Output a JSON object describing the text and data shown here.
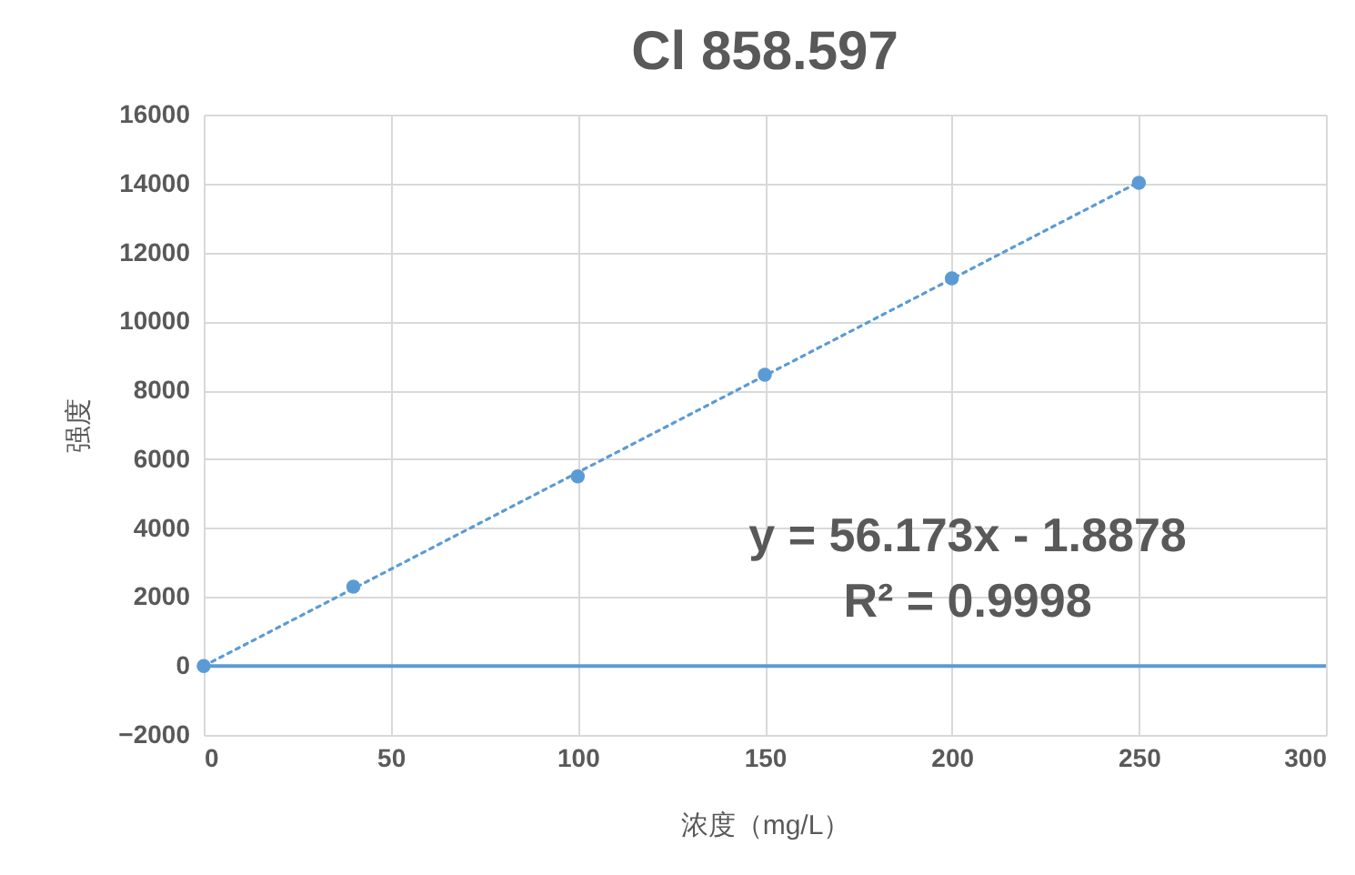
{
  "chart_data": {
    "type": "scatter",
    "title": "Cl 858.597",
    "xlabel": "浓度（mg/L）",
    "ylabel": "强度",
    "xlim": [
      0,
      300
    ],
    "xticks": [
      0,
      50,
      100,
      150,
      200,
      250,
      300
    ],
    "ylim": [
      -2000,
      16000
    ],
    "yticks": [
      -2000,
      0,
      2000,
      4000,
      6000,
      8000,
      10000,
      12000,
      14000,
      16000
    ],
    "grid": true,
    "marker": "circle",
    "series": [
      {
        "color": "#5b9bd5",
        "x": [
          0,
          40,
          100,
          150,
          200,
          250
        ],
        "values": [
          0,
          2300,
          5500,
          8450,
          11250,
          14020
        ]
      },
      {
        "type": "line",
        "marker": "none",
        "line_style": "dotted",
        "color": "#5b9bd5",
        "x": [
          0,
          250
        ],
        "values": [
          0,
          14040
        ]
      }
    ],
    "ref_lines": [
      {
        "axis": "y",
        "value": 0,
        "color": "#5b9bd5"
      }
    ],
    "annotations": [
      "y = 56.173x - 1.8878",
      "R² = 0.9998"
    ]
  }
}
